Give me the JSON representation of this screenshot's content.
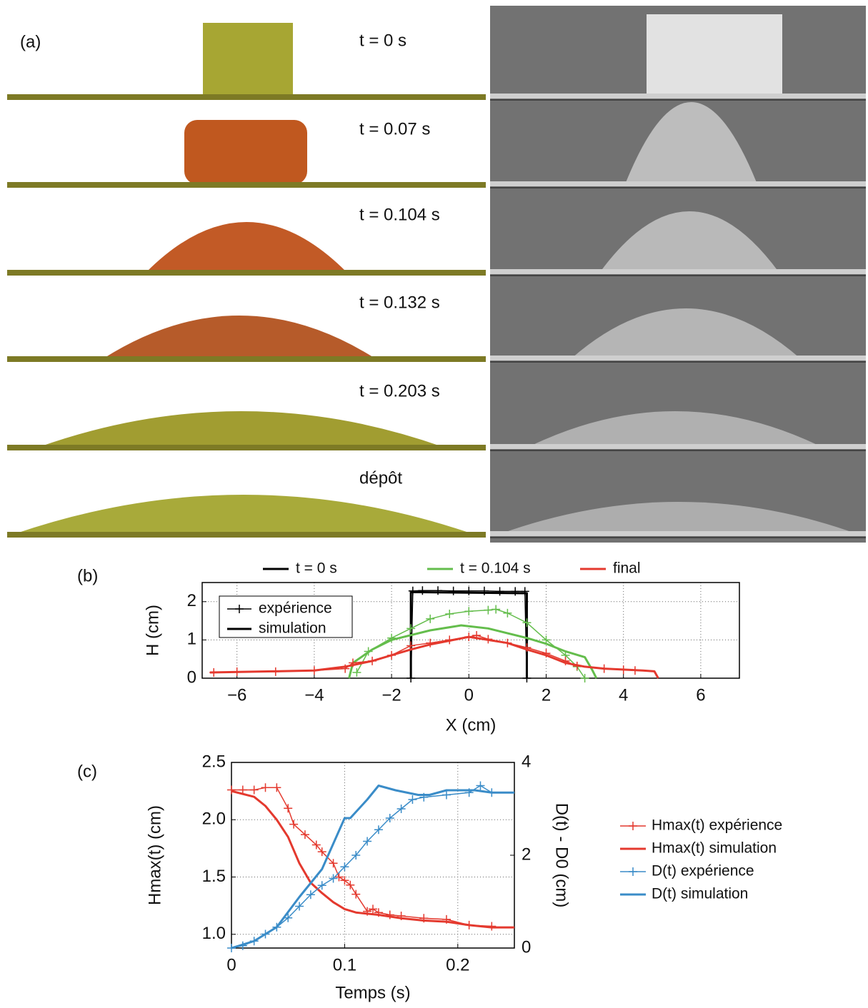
{
  "panel_a": {
    "label": "(a)",
    "frames": [
      "t = 0 s",
      "t = 0.07 s",
      "t = 0.104 s",
      "t = 0.132 s",
      "t = 0.203 s",
      "dépôt"
    ]
  },
  "chart_data": [
    {
      "type": "line",
      "panel_label": "(b)",
      "xlabel": "X (cm)",
      "ylabel": "H (cm)",
      "xlim": [
        -6.9,
        7
      ],
      "xticks": [
        {
          "value": -6,
          "label": "−6"
        },
        {
          "value": -4,
          "label": "−4"
        },
        {
          "value": -2,
          "label": "−2"
        },
        0,
        2,
        4,
        6
      ],
      "ylim": [
        0,
        2.5
      ],
      "yticks": [
        0,
        1,
        2
      ],
      "grid": true,
      "style_legend": [
        "expérience",
        "simulation"
      ],
      "series": [
        {
          "name": "t = 0 s",
          "color": "#000000",
          "experience": {
            "x": [
              -1.5,
              -1.45,
              -1.2,
              -0.8,
              -0.4,
              0,
              0.4,
              0.8,
              1.2,
              1.45,
              1.5
            ],
            "values": [
              0,
              2.28,
              2.29,
              2.29,
              2.28,
              2.28,
              2.28,
              2.27,
              2.27,
              2.27,
              0
            ]
          },
          "simulation": {
            "x": [
              -1.5,
              -1.5,
              1.5,
              1.5
            ],
            "values": [
              0,
              2.25,
              2.22,
              0
            ]
          }
        },
        {
          "name": "t = 0.104 s",
          "color": "#64bd4c",
          "experience": {
            "x": [
              -2.9,
              -2.6,
              -2,
              -1.5,
              -1,
              -0.5,
              0,
              0.5,
              0.7,
              1,
              1.5,
              2,
              2.5,
              2.8,
              3.0
            ],
            "values": [
              0.15,
              0.7,
              1.05,
              1.3,
              1.55,
              1.68,
              1.75,
              1.78,
              1.8,
              1.7,
              1.45,
              1.0,
              0.6,
              0.3,
              0
            ]
          },
          "simulation": {
            "x": [
              -3.1,
              -3.0,
              -2.5,
              -2,
              -1,
              -0.2,
              0.5,
              1.5,
              2,
              2.5,
              3.0,
              3.2,
              3.3
            ],
            "values": [
              0,
              0.4,
              0.75,
              1.0,
              1.25,
              1.38,
              1.3,
              1.05,
              0.9,
              0.7,
              0.55,
              0.2,
              0
            ]
          }
        },
        {
          "name": "final",
          "color": "#e4392e",
          "experience": {
            "x": [
              -6.6,
              -6,
              -5,
              -4,
              -3.2,
              -3,
              -2.5,
              -2,
              -1.5,
              -1,
              -0.5,
              0,
              0.2,
              0.5,
              1,
              1.5,
              2,
              2.5,
              2.8,
              3.5,
              4.0,
              4.3
            ],
            "values": [
              0.15,
              0.17,
              0.17,
              0.2,
              0.25,
              0.4,
              0.45,
              0.6,
              0.85,
              0.92,
              1.0,
              1.08,
              1.12,
              1.02,
              0.92,
              0.8,
              0.65,
              0.45,
              0.32,
              0.25,
              0.22,
              0.2
            ]
          },
          "simulation": {
            "x": [
              -6.7,
              -5,
              -4,
              -3.2,
              -2.5,
              -2,
              -1.5,
              -1,
              -0.5,
              0,
              0.5,
              1,
              1.5,
              2,
              2.5,
              3,
              3.5,
              4.5,
              4.8,
              4.9
            ],
            "values": [
              0.15,
              0.18,
              0.2,
              0.3,
              0.45,
              0.6,
              0.75,
              0.88,
              0.98,
              1.08,
              1.0,
              0.92,
              0.75,
              0.6,
              0.4,
              0.3,
              0.25,
              0.2,
              0.18,
              0
            ]
          }
        }
      ]
    },
    {
      "type": "line",
      "panel_label": "(c)",
      "xlabel": "Temps (s)",
      "ylabel": "Hmax(t) (cm)",
      "y2label": "D(t) - D0 (cm)",
      "xlim": [
        0,
        0.25
      ],
      "xticks": [
        0,
        0.1,
        0.2
      ],
      "ylim": [
        0.88,
        2.5
      ],
      "yticks": [
        {
          "value": 1,
          "label": "1.0"
        },
        1.5,
        {
          "value": 2,
          "label": "2.0"
        },
        2.5
      ],
      "y2lim": [
        0,
        4
      ],
      "y2ticks": [
        0,
        2,
        4
      ],
      "grid": true,
      "series": [
        {
          "name": "Hmax(t) expérience",
          "color": "#e4392e",
          "marker": "+",
          "x": [
            0,
            0.01,
            0.02,
            0.03,
            0.04,
            0.05,
            0.055,
            0.065,
            0.075,
            0.08,
            0.09,
            0.095,
            0.1,
            0.105,
            0.11,
            0.12,
            0.125,
            0.13,
            0.14,
            0.15,
            0.17,
            0.19,
            0.21,
            0.23
          ],
          "values": [
            2.26,
            2.26,
            2.26,
            2.28,
            2.28,
            2.1,
            1.96,
            1.87,
            1.78,
            1.72,
            1.62,
            1.5,
            1.47,
            1.43,
            1.35,
            1.2,
            1.22,
            1.19,
            1.17,
            1.16,
            1.14,
            1.13,
            1.08,
            1.07
          ]
        },
        {
          "name": "Hmax(t) simulation",
          "color": "#e4392e",
          "x": [
            0,
            0.02,
            0.03,
            0.04,
            0.05,
            0.06,
            0.07,
            0.08,
            0.09,
            0.1,
            0.11,
            0.13,
            0.15,
            0.17,
            0.19,
            0.21,
            0.23,
            0.25
          ],
          "values": [
            2.25,
            2.2,
            2.12,
            2.0,
            1.85,
            1.62,
            1.45,
            1.36,
            1.28,
            1.22,
            1.19,
            1.17,
            1.14,
            1.12,
            1.11,
            1.08,
            1.06,
            1.06
          ]
        },
        {
          "name": "D(t) expérience",
          "color": "#3a8cc8",
          "marker": "+",
          "axis": "y2",
          "x": [
            0,
            0.01,
            0.02,
            0.03,
            0.04,
            0.05,
            0.06,
            0.07,
            0.08,
            0.09,
            0.1,
            0.11,
            0.12,
            0.13,
            0.14,
            0.15,
            0.16,
            0.17,
            0.19,
            0.21,
            0.22,
            0.23
          ],
          "values": [
            0,
            0.05,
            0.15,
            0.3,
            0.45,
            0.65,
            0.9,
            1.15,
            1.35,
            1.5,
            1.75,
            2.0,
            2.3,
            2.55,
            2.8,
            3.0,
            3.2,
            3.25,
            3.3,
            3.35,
            3.5,
            3.35
          ]
        },
        {
          "name": "D(t) simulation",
          "color": "#3a8cc8",
          "axis": "y2",
          "x": [
            0,
            0.02,
            0.04,
            0.06,
            0.08,
            0.1,
            0.105,
            0.12,
            0.13,
            0.145,
            0.155,
            0.165,
            0.175,
            0.19,
            0.2,
            0.215,
            0.23,
            0.25
          ],
          "values": [
            0,
            0.15,
            0.45,
            1.1,
            1.7,
            2.8,
            2.8,
            3.2,
            3.5,
            3.4,
            3.35,
            3.3,
            3.3,
            3.4,
            3.4,
            3.4,
            3.35,
            3.35
          ]
        }
      ]
    }
  ]
}
